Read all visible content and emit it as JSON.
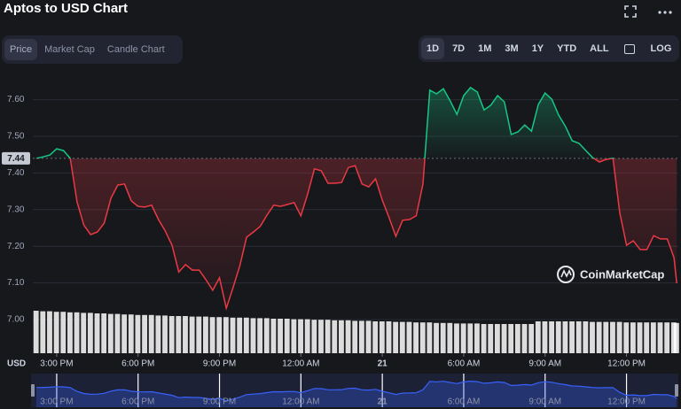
{
  "chart_data": {
    "type": "line",
    "title": "Aptos to USD Chart",
    "tabs": [
      "Price",
      "Market Cap",
      "Candle Chart"
    ],
    "ranges": [
      "1D",
      "7D",
      "1M",
      "3M",
      "1Y",
      "YTD",
      "ALL"
    ],
    "log_label": "LOG",
    "currency": "USD",
    "watermark": "CoinMarketCap",
    "baseline": 7.44,
    "up_color": "#16c784",
    "down_color": "#ea3943",
    "volume_color": "#ffffff",
    "navigator_color": "#3861fb",
    "grid": true,
    "xlim": [
      -0.88,
      22.91
    ],
    "xticks": [
      {
        "value": 0,
        "label": "3:00 PM"
      },
      {
        "value": 3,
        "label": "6:00 PM"
      },
      {
        "value": 6,
        "label": "9:00 PM"
      },
      {
        "value": 9,
        "label": "12:00 AM"
      },
      {
        "value": 12,
        "label": "21"
      },
      {
        "value": 15,
        "label": "6:00 AM"
      },
      {
        "value": 18,
        "label": "9:00 AM"
      },
      {
        "value": 21,
        "label": "12:00 PM"
      }
    ],
    "ylim": [
      7.0,
      7.65
    ],
    "yticks": [
      {
        "value": 7.0,
        "label": "7.00"
      },
      {
        "value": 7.1,
        "label": "7.10"
      },
      {
        "value": 7.2,
        "label": "7.20"
      },
      {
        "value": 7.3,
        "label": "7.30"
      },
      {
        "value": 7.4,
        "label": "7.40"
      },
      {
        "value": 7.5,
        "label": "7.50"
      },
      {
        "value": 7.6,
        "label": "7.60"
      }
    ],
    "volume_ylim": [
      0,
      100
    ],
    "x": [
      -0.75,
      -0.5,
      -0.25,
      0,
      0.25,
      0.5,
      0.75,
      1,
      1.25,
      1.5,
      1.75,
      2,
      2.25,
      2.5,
      2.75,
      3,
      3.25,
      3.5,
      3.75,
      4,
      4.25,
      4.5,
      4.75,
      5,
      5.25,
      5.5,
      5.75,
      6,
      6.25,
      6.5,
      6.75,
      7,
      7.25,
      7.5,
      7.75,
      8,
      8.25,
      8.5,
      8.75,
      9,
      9.25,
      9.5,
      9.75,
      10,
      10.25,
      10.5,
      10.75,
      11,
      11.25,
      11.5,
      11.75,
      12,
      12.25,
      12.5,
      12.75,
      13,
      13.25,
      13.5,
      13.75,
      14,
      14.25,
      14.5,
      14.75,
      15,
      15.25,
      15.5,
      15.75,
      16,
      16.25,
      16.5,
      16.75,
      17,
      17.25,
      17.5,
      17.75,
      18,
      18.25,
      18.5,
      18.75,
      19,
      19.25,
      19.5,
      19.75,
      20,
      20.25,
      20.5,
      20.75,
      21,
      21.25,
      21.5,
      21.75,
      22,
      22.25,
      22.5,
      22.75,
      22.85
    ],
    "series": [
      {
        "name": "Price",
        "values": [
          7.44,
          7.444,
          7.449,
          7.466,
          7.461,
          7.44,
          7.321,
          7.258,
          7.232,
          7.239,
          7.263,
          7.331,
          7.367,
          7.37,
          7.324,
          7.309,
          7.307,
          7.312,
          7.273,
          7.242,
          7.203,
          7.13,
          7.15,
          7.135,
          7.135,
          7.109,
          7.08,
          7.114,
          7.031,
          7.087,
          7.147,
          7.225,
          7.239,
          7.254,
          7.285,
          7.312,
          7.309,
          7.314,
          7.319,
          7.283,
          7.343,
          7.411,
          7.406,
          7.372,
          7.372,
          7.374,
          7.415,
          7.42,
          7.37,
          7.362,
          7.384,
          7.326,
          7.278,
          7.227,
          7.271,
          7.273,
          7.283,
          7.37,
          7.626,
          7.616,
          7.63,
          7.597,
          7.56,
          7.611,
          7.633,
          7.621,
          7.572,
          7.585,
          7.611,
          7.594,
          7.505,
          7.512,
          7.531,
          7.514,
          7.587,
          7.618,
          7.601,
          7.558,
          7.527,
          7.488,
          7.481,
          7.461,
          7.442,
          7.43,
          7.437,
          7.44,
          7.292,
          7.203,
          7.215,
          7.191,
          7.191,
          7.229,
          7.22,
          7.22,
          7.169,
          7.099
        ]
      },
      {
        "name": "Volume",
        "axis": "volume",
        "values": [
          80,
          79,
          79,
          78,
          78,
          77,
          77,
          76,
          76,
          75,
          75,
          74,
          74,
          73,
          73,
          72,
          72,
          72,
          71,
          71,
          70,
          70,
          70,
          69,
          69,
          69,
          68,
          68,
          68,
          67,
          67,
          67,
          66,
          66,
          66,
          65,
          65,
          65,
          64,
          64,
          64,
          63,
          63,
          63,
          62,
          62,
          62,
          61,
          61,
          61,
          60,
          60,
          60,
          59,
          59,
          59,
          58,
          58,
          58,
          57,
          57,
          57,
          56,
          56,
          56,
          56,
          55,
          55,
          55,
          55,
          55,
          55,
          55,
          55,
          60,
          60,
          60,
          60,
          60,
          60,
          60,
          60,
          59,
          59,
          59,
          59,
          59,
          58,
          58,
          58,
          58,
          58,
          58,
          58,
          58,
          57
        ]
      }
    ]
  }
}
